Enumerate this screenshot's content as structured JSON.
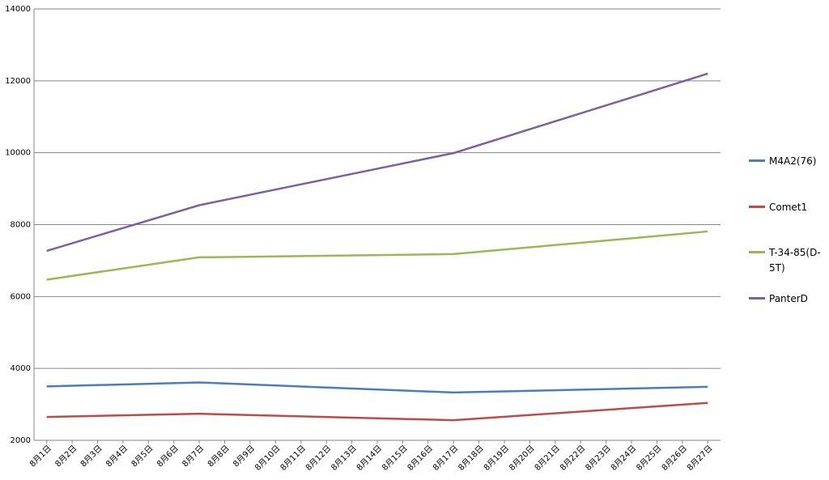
{
  "chart_data": {
    "type": "line",
    "x": [
      1,
      7,
      17,
      27
    ],
    "xlim": [
      0.5,
      27.5
    ],
    "xticks": [
      {
        "value": 1,
        "label": "8月1日"
      },
      {
        "value": 2,
        "label": "8月2日"
      },
      {
        "value": 3,
        "label": "8月3日"
      },
      {
        "value": 4,
        "label": "8月4日"
      },
      {
        "value": 5,
        "label": "8月5日"
      },
      {
        "value": 6,
        "label": "8月6日"
      },
      {
        "value": 7,
        "label": "8月7日"
      },
      {
        "value": 8,
        "label": "8月8日"
      },
      {
        "value": 9,
        "label": "8月9日"
      },
      {
        "value": 10,
        "label": "8月10日"
      },
      {
        "value": 11,
        "label": "8月11日"
      },
      {
        "value": 12,
        "label": "8月12日"
      },
      {
        "value": 13,
        "label": "8月13日"
      },
      {
        "value": 14,
        "label": "8月14日"
      },
      {
        "value": 15,
        "label": "8月15日"
      },
      {
        "value": 16,
        "label": "8月16日"
      },
      {
        "value": 17,
        "label": "8月17日"
      },
      {
        "value": 18,
        "label": "8月18日"
      },
      {
        "value": 19,
        "label": "8月19日"
      },
      {
        "value": 20,
        "label": "8月20日"
      },
      {
        "value": 21,
        "label": "8月21日"
      },
      {
        "value": 22,
        "label": "8月22日"
      },
      {
        "value": 23,
        "label": "8月23日"
      },
      {
        "value": 24,
        "label": "8月24日"
      },
      {
        "value": 25,
        "label": "8月25日"
      },
      {
        "value": 26,
        "label": "8月26日"
      },
      {
        "value": 27,
        "label": "8月27日"
      }
    ],
    "ylim": [
      2000,
      14000
    ],
    "yticks": [
      2000,
      4000,
      6000,
      8000,
      10000,
      12000,
      14000
    ],
    "grid": true,
    "legend": "right",
    "series": [
      {
        "name": "M4A2(76)",
        "color": "#4a7ebb",
        "values": [
          3500,
          3610,
          3330,
          3490
        ]
      },
      {
        "name": "Comet1",
        "color": "#be4b48",
        "values": [
          2650,
          2740,
          2560,
          3040
        ]
      },
      {
        "name": "T-34-85(D-5T)",
        "color": "#98b954",
        "values": [
          6470,
          7090,
          7180,
          7810
        ]
      },
      {
        "name": "PanterD",
        "color": "#7d60a0",
        "values": [
          7270,
          8540,
          9990,
          12200
        ]
      }
    ]
  }
}
